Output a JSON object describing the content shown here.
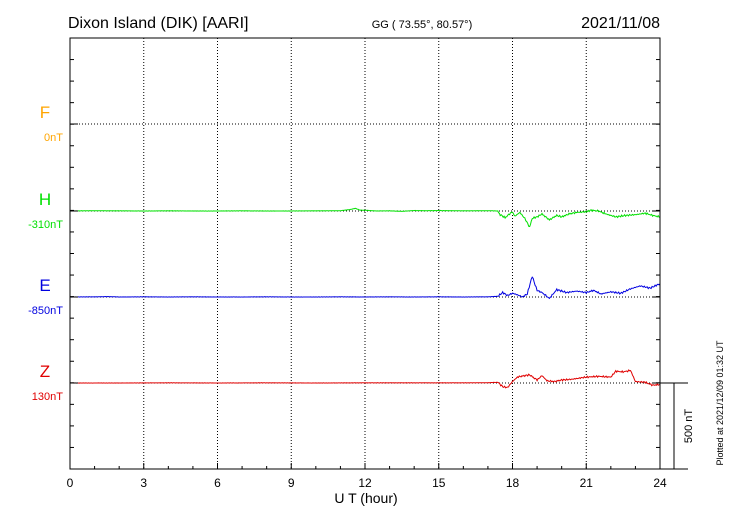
{
  "header": {
    "station": "Dixon Island (DIK)  [AARI]",
    "coords": "GG ( 73.55°,  80.57°)",
    "date": "2021/11/08"
  },
  "footer": {
    "plotted": "Plotted at 2021/12/09 01:32 UT"
  },
  "chart_data": {
    "type": "line",
    "xlabel": "U T (hour)",
    "xlim": [
      0,
      24
    ],
    "xticks": [
      0,
      3,
      6,
      9,
      12,
      15,
      18,
      21,
      24
    ],
    "scale_bar": {
      "label": "500 nT",
      "value_nT": 500
    },
    "grid": true,
    "series": [
      {
        "name": "F",
        "baseline_label": "0nT",
        "color": "#ffa500",
        "points": []
      },
      {
        "name": "H",
        "baseline_label": "-310nT",
        "color": "#00e000",
        "points": [
          [
            0,
            0
          ],
          [
            1,
            2
          ],
          [
            2,
            1
          ],
          [
            3,
            0
          ],
          [
            4,
            1
          ],
          [
            5,
            0
          ],
          [
            6,
            0
          ],
          [
            7,
            1
          ],
          [
            8,
            0
          ],
          [
            9,
            0
          ],
          [
            10,
            1
          ],
          [
            11,
            2
          ],
          [
            11.4,
            10
          ],
          [
            11.6,
            18
          ],
          [
            11.8,
            6
          ],
          [
            12,
            5
          ],
          [
            12.5,
            0
          ],
          [
            13,
            1
          ],
          [
            13.5,
            -2
          ],
          [
            14,
            3
          ],
          [
            14.5,
            2
          ],
          [
            15,
            3
          ],
          [
            16,
            1
          ],
          [
            17,
            2
          ],
          [
            17.4,
            0
          ],
          [
            17.5,
            -25
          ],
          [
            17.7,
            -45
          ],
          [
            17.8,
            -30
          ],
          [
            18.0,
            -5
          ],
          [
            18.1,
            -35
          ],
          [
            18.3,
            -10
          ],
          [
            18.5,
            -50
          ],
          [
            18.7,
            -110
          ],
          [
            18.8,
            -50
          ],
          [
            19.0,
            -40
          ],
          [
            19.2,
            -20
          ],
          [
            19.5,
            -60
          ],
          [
            19.8,
            -30
          ],
          [
            20.0,
            -40
          ],
          [
            20.3,
            -20
          ],
          [
            20.6,
            -10
          ],
          [
            21.0,
            -5
          ],
          [
            21.2,
            5
          ],
          [
            21.5,
            0
          ],
          [
            21.8,
            -20
          ],
          [
            22.2,
            -40
          ],
          [
            22.6,
            -30
          ],
          [
            23.0,
            -25
          ],
          [
            23.4,
            -15
          ],
          [
            23.7,
            -30
          ],
          [
            24,
            -40
          ]
        ]
      },
      {
        "name": "E",
        "baseline_label": "-850nT",
        "color": "#0000e0",
        "points": [
          [
            0,
            0
          ],
          [
            1,
            1
          ],
          [
            1.5,
            3
          ],
          [
            2,
            0
          ],
          [
            3,
            1
          ],
          [
            4,
            0
          ],
          [
            5,
            1
          ],
          [
            6,
            0
          ],
          [
            7,
            0
          ],
          [
            8,
            1
          ],
          [
            9,
            0
          ],
          [
            10,
            0
          ],
          [
            11,
            1
          ],
          [
            12,
            0
          ],
          [
            13,
            1
          ],
          [
            14,
            0
          ],
          [
            15,
            1
          ],
          [
            16,
            0
          ],
          [
            17,
            1
          ],
          [
            17.4,
            5
          ],
          [
            17.6,
            30
          ],
          [
            17.8,
            10
          ],
          [
            18.0,
            25
          ],
          [
            18.2,
            15
          ],
          [
            18.4,
            0
          ],
          [
            18.6,
            20
          ],
          [
            18.8,
            140
          ],
          [
            19.0,
            45
          ],
          [
            19.2,
            30
          ],
          [
            19.5,
            -10
          ],
          [
            19.8,
            50
          ],
          [
            20.2,
            30
          ],
          [
            20.6,
            40
          ],
          [
            21.0,
            30
          ],
          [
            21.3,
            45
          ],
          [
            21.6,
            20
          ],
          [
            22.0,
            35
          ],
          [
            22.4,
            25
          ],
          [
            22.8,
            55
          ],
          [
            23.2,
            75
          ],
          [
            23.6,
            60
          ],
          [
            24,
            90
          ]
        ]
      },
      {
        "name": "Z",
        "baseline_label": "130nT",
        "color": "#e00000",
        "points": [
          [
            0,
            0
          ],
          [
            2,
            0
          ],
          [
            4,
            1
          ],
          [
            6,
            0
          ],
          [
            8,
            1
          ],
          [
            10,
            0
          ],
          [
            12,
            1
          ],
          [
            14,
            1
          ],
          [
            16,
            1
          ],
          [
            17,
            2
          ],
          [
            17.4,
            5
          ],
          [
            17.6,
            -25
          ],
          [
            17.8,
            -30
          ],
          [
            18.0,
            10
          ],
          [
            18.2,
            40
          ],
          [
            18.5,
            50
          ],
          [
            18.7,
            55
          ],
          [
            19.0,
            20
          ],
          [
            19.2,
            50
          ],
          [
            19.4,
            15
          ],
          [
            19.7,
            10
          ],
          [
            20.0,
            20
          ],
          [
            20.4,
            25
          ],
          [
            21.0,
            40
          ],
          [
            21.5,
            45
          ],
          [
            22.0,
            40
          ],
          [
            22.2,
            80
          ],
          [
            22.5,
            75
          ],
          [
            22.8,
            85
          ],
          [
            23.0,
            10
          ],
          [
            23.4,
            5
          ],
          [
            23.7,
            -15
          ],
          [
            24,
            -10
          ]
        ]
      }
    ]
  }
}
